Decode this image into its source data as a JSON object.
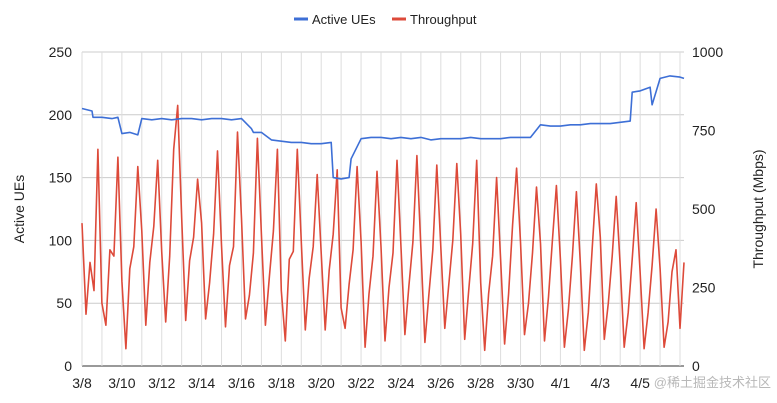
{
  "chart_data": {
    "type": "line",
    "title": "",
    "legend": {
      "placement": "top-center",
      "entries": [
        "Active UEs",
        "Throughput"
      ]
    },
    "xlabel": "",
    "ylabel_left": "Active UEs",
    "ylabel_right": "Throughput (Mbps)",
    "ylim_left": [
      0,
      250
    ],
    "ylim_right": [
      0,
      1000
    ],
    "yticks_left": [
      "0",
      "50",
      "100",
      "150",
      "200",
      "250"
    ],
    "yticks_right": [
      "0",
      "250",
      "500",
      "750",
      "1000"
    ],
    "xticks": [
      "3/8",
      "3/10",
      "3/12",
      "3/14",
      "3/16",
      "3/18",
      "3/20",
      "3/22",
      "3/24",
      "3/26",
      "3/28",
      "3/30",
      "4/1",
      "4/3",
      "4/5"
    ],
    "x_range_days": [
      0,
      30.2
    ],
    "grid": true,
    "series": [
      {
        "name": "Active UEs",
        "axis": "left",
        "color": "#3d6fd6",
        "x": [
          0,
          0.5,
          0.55,
          1.0,
          1.5,
          1.8,
          2.0,
          2.4,
          2.8,
          3.0,
          3.5,
          4.0,
          4.5,
          5.0,
          5.5,
          6.0,
          6.5,
          7.0,
          7.5,
          8.0,
          8.5,
          8.6,
          9.0,
          9.5,
          10.0,
          10.5,
          11.0,
          11.5,
          12.0,
          12.5,
          12.6,
          13.0,
          13.4,
          13.5,
          14.0,
          14.5,
          15.0,
          15.5,
          16.0,
          16.5,
          17.0,
          17.5,
          18.0,
          18.5,
          19.0,
          19.5,
          20.0,
          20.5,
          21.0,
          21.5,
          22.0,
          22.5,
          23.0,
          23.5,
          24.0,
          24.5,
          25.0,
          25.5,
          26.0,
          26.5,
          27.0,
          27.5,
          27.6,
          28.0,
          28.5,
          28.6,
          29.0,
          29.5,
          30.0,
          30.2
        ],
        "values": [
          205,
          203,
          198,
          198,
          197,
          198,
          185,
          186,
          184,
          197,
          196,
          197,
          196,
          197,
          197,
          196,
          197,
          197,
          196,
          197,
          189,
          186,
          186,
          180,
          179,
          178,
          178,
          177,
          177,
          178,
          150,
          149,
          150,
          165,
          181,
          182,
          182,
          181,
          182,
          181,
          182,
          180,
          181,
          181,
          181,
          182,
          181,
          181,
          181,
          182,
          182,
          182,
          192,
          191,
          191,
          192,
          192,
          193,
          193,
          193,
          194,
          195,
          218,
          219,
          222,
          208,
          229,
          231,
          230,
          229
        ]
      },
      {
        "name": "Throughput",
        "axis": "right",
        "color": "#dd4a3a",
        "x": [
          0,
          0.2,
          0.4,
          0.6,
          0.8,
          1.0,
          1.2,
          1.4,
          1.6,
          1.8,
          2.0,
          2.2,
          2.4,
          2.6,
          2.8,
          3.0,
          3.2,
          3.4,
          3.6,
          3.8,
          4.0,
          4.2,
          4.4,
          4.6,
          4.8,
          5.0,
          5.2,
          5.4,
          5.6,
          5.8,
          6.0,
          6.2,
          6.4,
          6.6,
          6.8,
          7.0,
          7.2,
          7.4,
          7.6,
          7.8,
          8.0,
          8.2,
          8.4,
          8.6,
          8.8,
          9.0,
          9.2,
          9.4,
          9.6,
          9.8,
          10.0,
          10.2,
          10.4,
          10.6,
          10.8,
          11.0,
          11.2,
          11.4,
          11.6,
          11.8,
          12.0,
          12.2,
          12.4,
          12.6,
          12.8,
          13.0,
          13.2,
          13.4,
          13.6,
          13.8,
          14.0,
          14.2,
          14.4,
          14.6,
          14.8,
          15.0,
          15.2,
          15.4,
          15.6,
          15.8,
          16.0,
          16.2,
          16.4,
          16.6,
          16.8,
          17.0,
          17.2,
          17.4,
          17.6,
          17.8,
          18.0,
          18.2,
          18.4,
          18.6,
          18.8,
          19.0,
          19.2,
          19.4,
          19.6,
          19.8,
          20.0,
          20.2,
          20.4,
          20.6,
          20.8,
          21.0,
          21.2,
          21.4,
          21.6,
          21.8,
          22.0,
          22.2,
          22.4,
          22.6,
          22.8,
          23.0,
          23.2,
          23.4,
          23.6,
          23.8,
          24.0,
          24.2,
          24.4,
          24.6,
          24.8,
          25.0,
          25.2,
          25.4,
          25.6,
          25.8,
          26.0,
          26.2,
          26.4,
          26.6,
          26.8,
          27.0,
          27.2,
          27.4,
          27.6,
          27.8,
          28.0,
          28.2,
          28.4,
          28.6,
          28.8,
          29.0,
          29.2,
          29.4,
          29.6,
          29.8,
          30.0,
          30.2
        ],
        "values": [
          455,
          165,
          330,
          240,
          690,
          200,
          130,
          370,
          350,
          665,
          270,
          55,
          310,
          380,
          635,
          430,
          130,
          330,
          445,
          655,
          365,
          140,
          350,
          690,
          830,
          470,
          145,
          335,
          410,
          595,
          455,
          150,
          265,
          420,
          685,
          385,
          125,
          320,
          380,
          745,
          470,
          150,
          225,
          360,
          725,
          420,
          130,
          285,
          430,
          690,
          240,
          80,
          340,
          365,
          690,
          395,
          115,
          280,
          380,
          610,
          360,
          115,
          305,
          420,
          625,
          185,
          120,
          260,
          370,
          635,
          395,
          60,
          230,
          350,
          620,
          380,
          80,
          250,
          360,
          655,
          385,
          100,
          255,
          395,
          670,
          375,
          75,
          225,
          370,
          640,
          380,
          120,
          260,
          400,
          645,
          420,
          85,
          240,
          390,
          655,
          265,
          50,
          230,
          350,
          600,
          340,
          70,
          230,
          450,
          630,
          395,
          100,
          200,
          360,
          570,
          390,
          80,
          220,
          400,
          575,
          340,
          60,
          180,
          350,
          555,
          330,
          50,
          170,
          380,
          580,
          410,
          85,
          200,
          350,
          540,
          320,
          60,
          170,
          340,
          520,
          300,
          55,
          170,
          320,
          500,
          310,
          60,
          140,
          300,
          370,
          120,
          330
        ]
      }
    ],
    "watermark": "@稀土掘金技术社区"
  }
}
